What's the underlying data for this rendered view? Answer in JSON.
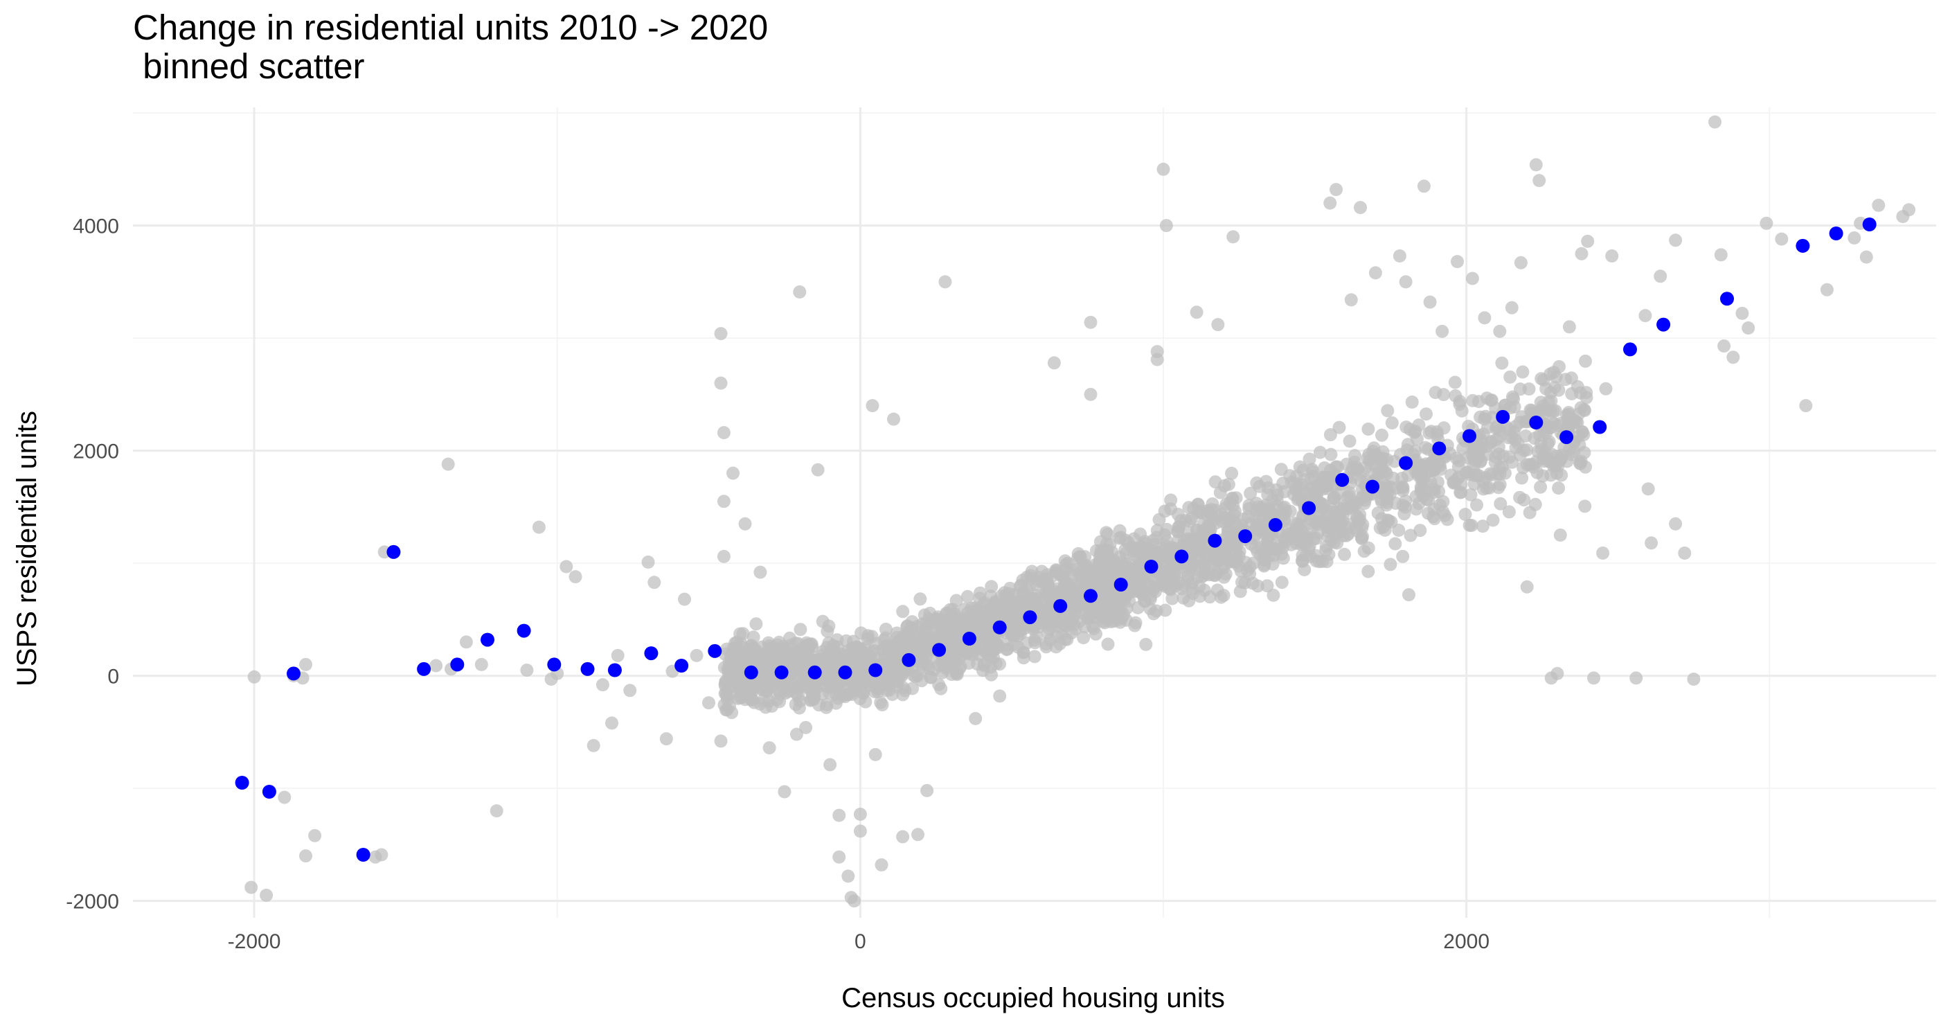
{
  "chart_data": {
    "type": "scatter",
    "title": "Change in residential units 2010 -> 2020\n binned scatter",
    "xlabel": "Census occupied housing units",
    "ylabel": "USPS residential units",
    "xlim": [
      -2400,
      3550
    ],
    "ylim": [
      -2150,
      5050
    ],
    "x_ticks": [
      -2000,
      0,
      2000
    ],
    "y_ticks": [
      -2000,
      0,
      2000,
      4000
    ],
    "x_tick_labels": [
      "-2000",
      "0",
      "2000"
    ],
    "y_tick_labels": [
      "-2000",
      "0",
      "2000",
      "4000"
    ],
    "grid": true,
    "colors": {
      "raw_points": "#bebebe",
      "binned_points": "#0000ff",
      "grid_major": "#ebebeb",
      "grid_minor": "#f4f4f4"
    },
    "series": [
      {
        "role": "raw observations",
        "points": [
          [
            -2010,
            -1880
          ],
          [
            -2000,
            -10
          ],
          [
            -1870,
            0
          ],
          [
            -1830,
            100
          ],
          [
            -1840,
            -20
          ],
          [
            -1960,
            -1950
          ],
          [
            -1900,
            -1080
          ],
          [
            -1800,
            -1420
          ],
          [
            -1830,
            -1600
          ],
          [
            -1570,
            1100
          ],
          [
            -1580,
            -1590
          ],
          [
            -1600,
            -1610
          ],
          [
            -1360,
            1880
          ],
          [
            -1350,
            60
          ],
          [
            -1400,
            90
          ],
          [
            -1300,
            300
          ],
          [
            -1250,
            100
          ],
          [
            -1200,
            -1200
          ],
          [
            -1100,
            50
          ],
          [
            -1060,
            1320
          ],
          [
            -1020,
            -30
          ],
          [
            -1000,
            20
          ],
          [
            -970,
            970
          ],
          [
            -940,
            880
          ],
          [
            -880,
            -620
          ],
          [
            -800,
            180
          ],
          [
            -850,
            -80
          ],
          [
            -820,
            -420
          ],
          [
            -760,
            -130
          ],
          [
            -700,
            1010
          ],
          [
            -680,
            830
          ],
          [
            -640,
            -560
          ],
          [
            -620,
            40
          ],
          [
            -580,
            680
          ],
          [
            -540,
            180
          ],
          [
            -500,
            -240
          ],
          [
            -460,
            -580
          ],
          [
            -460,
            3040
          ],
          [
            -460,
            2600
          ],
          [
            -450,
            2160
          ],
          [
            -450,
            1550
          ],
          [
            -450,
            1060
          ],
          [
            -440,
            -180
          ],
          [
            -420,
            1800
          ],
          [
            -380,
            1350
          ],
          [
            -330,
            920
          ],
          [
            -300,
            -640
          ],
          [
            -250,
            -1030
          ],
          [
            -210,
            -520
          ],
          [
            -200,
            3410
          ],
          [
            -180,
            -460
          ],
          [
            -140,
            1830
          ],
          [
            -100,
            -790
          ],
          [
            -70,
            -1240
          ],
          [
            -70,
            -1610
          ],
          [
            -40,
            -1780
          ],
          [
            -30,
            -1970
          ],
          [
            -20,
            -2000
          ],
          [
            0,
            -1230
          ],
          [
            0,
            -1380
          ],
          [
            40,
            2400
          ],
          [
            50,
            -700
          ],
          [
            70,
            -1680
          ],
          [
            110,
            2280
          ],
          [
            140,
            -1430
          ],
          [
            190,
            -1410
          ],
          [
            220,
            -1020
          ],
          [
            280,
            3500
          ],
          [
            380,
            -380
          ],
          [
            460,
            -180
          ],
          [
            640,
            2780
          ],
          [
            760,
            3140
          ],
          [
            760,
            2500
          ],
          [
            980,
            2880
          ],
          [
            980,
            2810
          ],
          [
            1000,
            4500
          ],
          [
            1010,
            4000
          ],
          [
            1110,
            3230
          ],
          [
            1180,
            3120
          ],
          [
            1230,
            3900
          ],
          [
            1550,
            4200
          ],
          [
            1570,
            4320
          ],
          [
            1620,
            3340
          ],
          [
            1650,
            4160
          ],
          [
            1700,
            3580
          ],
          [
            1780,
            3730
          ],
          [
            1800,
            3500
          ],
          [
            1790,
            1060
          ],
          [
            1810,
            720
          ],
          [
            1860,
            4350
          ],
          [
            1880,
            3320
          ],
          [
            1920,
            3060
          ],
          [
            1970,
            3680
          ],
          [
            2020,
            3530
          ],
          [
            2060,
            3180
          ],
          [
            2110,
            3060
          ],
          [
            2150,
            3270
          ],
          [
            2180,
            3670
          ],
          [
            2200,
            790
          ],
          [
            2230,
            4540
          ],
          [
            2240,
            4400
          ],
          [
            2280,
            -20
          ],
          [
            2300,
            20
          ],
          [
            2310,
            1250
          ],
          [
            2340,
            3100
          ],
          [
            2380,
            3750
          ],
          [
            2400,
            3860
          ],
          [
            2420,
            -20
          ],
          [
            2450,
            1090
          ],
          [
            2460,
            2550
          ],
          [
            2480,
            3730
          ],
          [
            2560,
            -20
          ],
          [
            2590,
            3200
          ],
          [
            2600,
            1660
          ],
          [
            2610,
            1180
          ],
          [
            2640,
            3550
          ],
          [
            2690,
            1350
          ],
          [
            2690,
            3870
          ],
          [
            2720,
            1090
          ],
          [
            2750,
            -30
          ],
          [
            2820,
            4920
          ],
          [
            2840,
            3740
          ],
          [
            2850,
            2930
          ],
          [
            2880,
            2830
          ],
          [
            2910,
            3220
          ],
          [
            2930,
            3090
          ],
          [
            2990,
            4020
          ],
          [
            3040,
            3880
          ],
          [
            3120,
            2400
          ],
          [
            3190,
            3430
          ],
          [
            3280,
            3890
          ],
          [
            3320,
            3720
          ],
          [
            3360,
            4180
          ],
          [
            3440,
            4080
          ],
          [
            3460,
            4140
          ],
          [
            3300,
            4020
          ]
        ]
      },
      {
        "role": "binned means",
        "points": [
          [
            -2040,
            -950
          ],
          [
            -1950,
            -1030
          ],
          [
            -1870,
            20
          ],
          [
            -1640,
            -1590
          ],
          [
            -1540,
            1100
          ],
          [
            -1440,
            60
          ],
          [
            -1330,
            100
          ],
          [
            -1230,
            320
          ],
          [
            -1110,
            400
          ],
          [
            -1010,
            100
          ],
          [
            -900,
            60
          ],
          [
            -810,
            50
          ],
          [
            -690,
            200
          ],
          [
            -590,
            90
          ],
          [
            -480,
            220
          ],
          [
            -360,
            30
          ],
          [
            -260,
            30
          ],
          [
            -150,
            30
          ],
          [
            -50,
            30
          ],
          [
            50,
            50
          ],
          [
            160,
            140
          ],
          [
            260,
            230
          ],
          [
            360,
            330
          ],
          [
            460,
            430
          ],
          [
            560,
            520
          ],
          [
            660,
            620
          ],
          [
            760,
            710
          ],
          [
            860,
            810
          ],
          [
            960,
            970
          ],
          [
            1060,
            1060
          ],
          [
            1170,
            1200
          ],
          [
            1270,
            1240
          ],
          [
            1370,
            1340
          ],
          [
            1480,
            1490
          ],
          [
            1590,
            1740
          ],
          [
            1690,
            1680
          ],
          [
            1800,
            1890
          ],
          [
            1910,
            2020
          ],
          [
            2010,
            2130
          ],
          [
            2120,
            2300
          ],
          [
            2230,
            2250
          ],
          [
            2330,
            2120
          ],
          [
            2440,
            2210
          ],
          [
            2540,
            2900
          ],
          [
            2650,
            3120
          ],
          [
            2860,
            3350
          ],
          [
            3110,
            3820
          ],
          [
            3220,
            3930
          ],
          [
            3330,
            4010
          ]
        ]
      }
    ]
  }
}
